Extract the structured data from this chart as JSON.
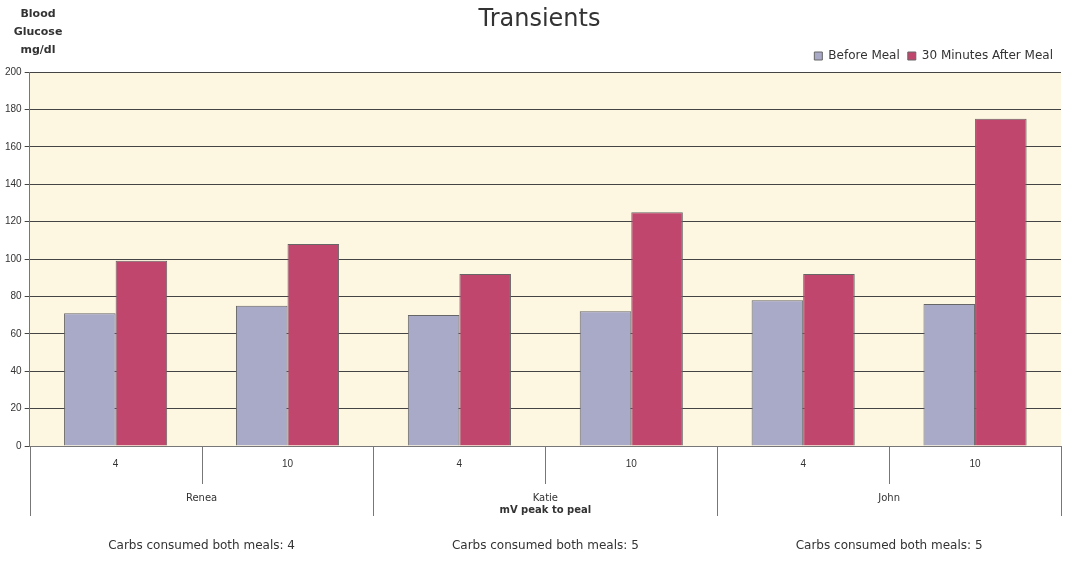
{
  "chart_data": {
    "type": "bar",
    "title": "Transients",
    "ylabel": "Blood Glucose mg/dl",
    "xlabel": "mV peak to peal",
    "categories": [
      "4",
      "10",
      "4",
      "10",
      "4",
      "10"
    ],
    "series": [
      {
        "name": "Before Meal",
        "color": "#a9a9c8",
        "values": [
          71,
          75,
          70,
          72,
          78,
          76
        ]
      },
      {
        "name": "30 Minutes After Meal",
        "color": "#c0466e",
        "values": [
          99,
          108,
          92,
          125,
          92,
          175
        ]
      }
    ],
    "ylim": [
      0,
      200
    ],
    "yticks": [
      0,
      20,
      40,
      60,
      80,
      100,
      120,
      140,
      160,
      180,
      200
    ],
    "grid": "y",
    "legend": "top right",
    "annotations": [
      "Renea",
      "Katie",
      "John",
      "Carbs consumed both meals: 4",
      "Carbs consumed both meals: 5",
      "Carbs consumed both meals: 5"
    ]
  }
}
